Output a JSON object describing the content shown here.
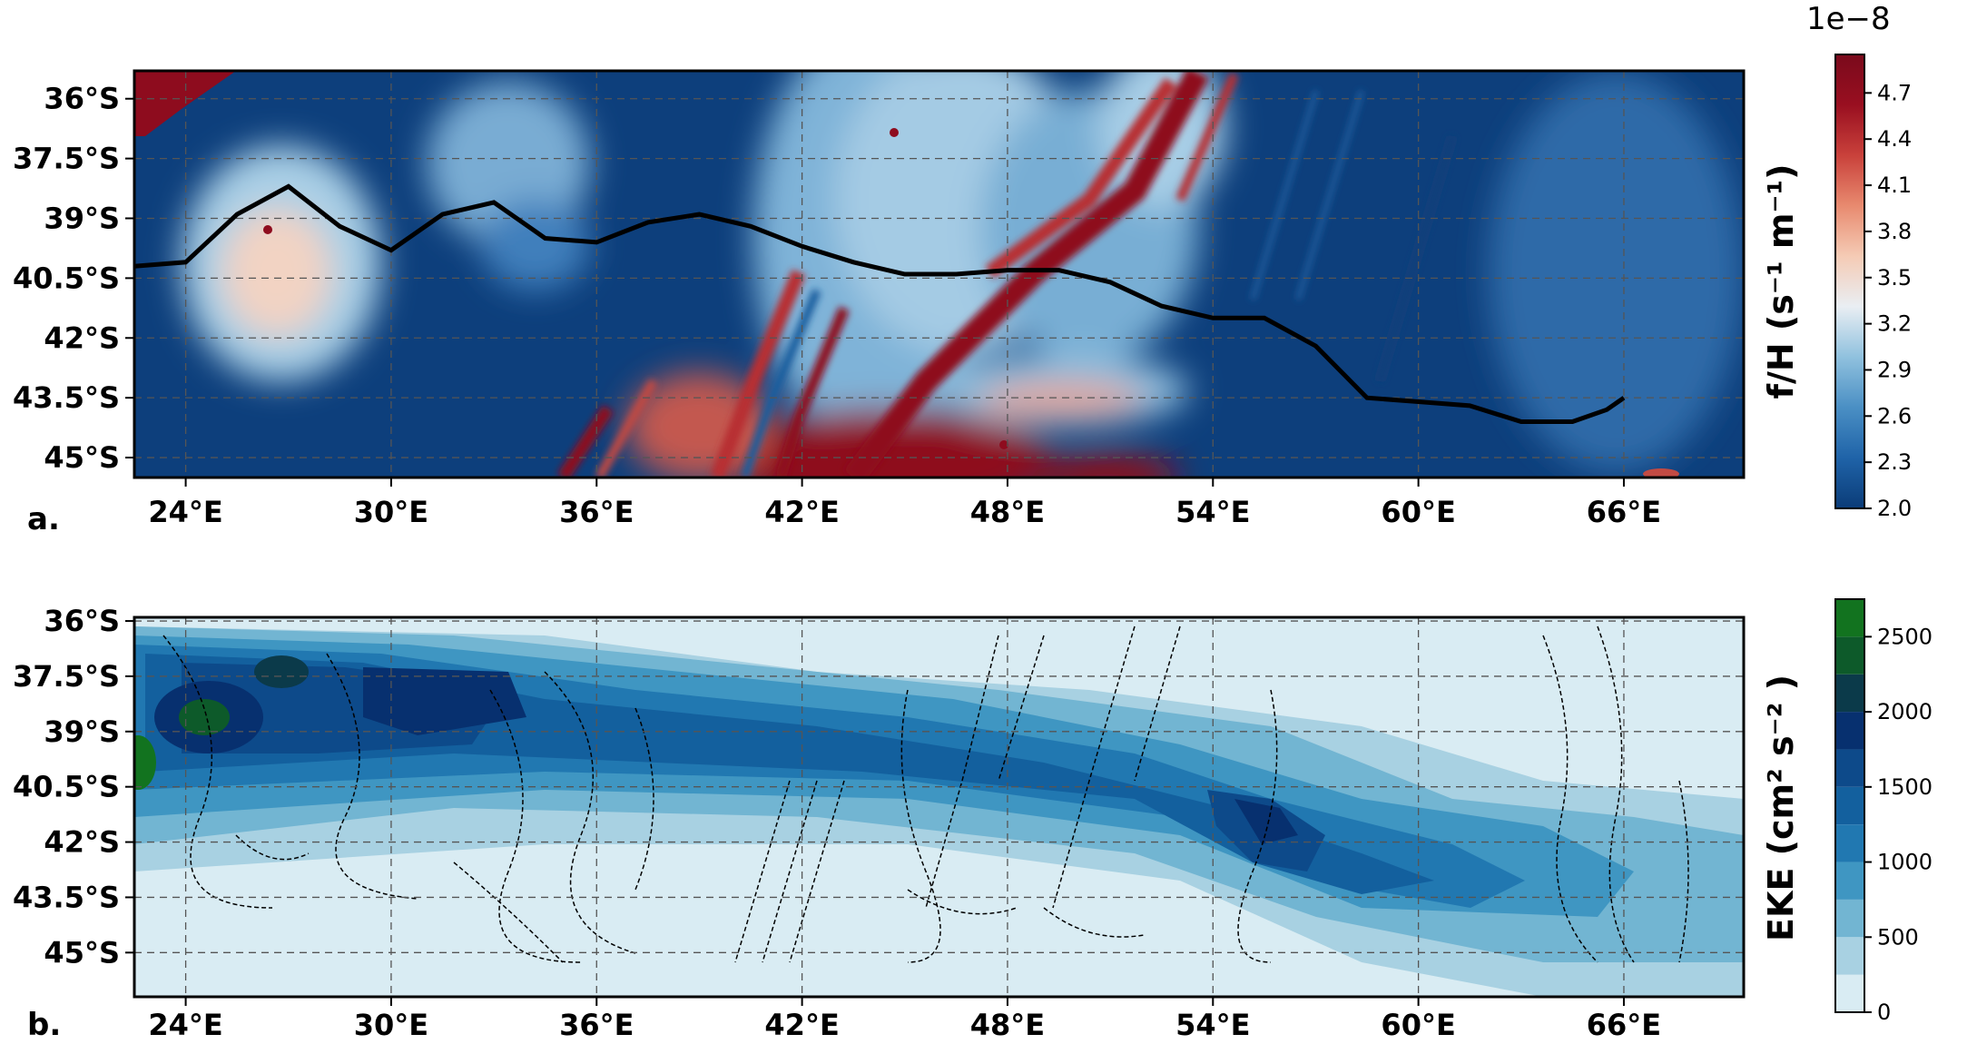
{
  "chart_data": [
    {
      "type": "heatmap",
      "panel_label": "a.",
      "x_ticks": [
        "24°E",
        "30°E",
        "36°E",
        "42°E",
        "48°E",
        "54°E",
        "60°E",
        "66°E"
      ],
      "x_tick_values": [
        24,
        30,
        36,
        42,
        48,
        54,
        60,
        66
      ],
      "y_ticks": [
        "36°S",
        "37.5°S",
        "39°S",
        "40.5°S",
        "42°S",
        "43.5°S",
        "45°S"
      ],
      "y_tick_values": [
        36,
        37.5,
        39,
        40.5,
        42,
        43.5,
        45
      ],
      "xlim": [
        22.5,
        69.5
      ],
      "ylim": [
        45.5,
        35.3
      ],
      "grid": true,
      "colorbar": {
        "label": "f/H (s⁻¹ m⁻¹)",
        "offset": "1e−8",
        "ticks": [
          "2.0",
          "2.3",
          "2.6",
          "2.9",
          "3.2",
          "3.5",
          "3.8",
          "4.1",
          "4.4",
          "4.7"
        ],
        "tick_values": [
          2.0,
          2.3,
          2.6,
          2.9,
          3.2,
          3.5,
          3.8,
          4.1,
          4.4,
          4.7
        ],
        "range": [
          2.0,
          4.95
        ],
        "colormap": [
          "#0b3c78",
          "#1f63a8",
          "#4a8fc4",
          "#90c1de",
          "#e9eef3",
          "#f5cbb5",
          "#e88a6f",
          "#c9413b",
          "#990f20",
          "#7a0a1c"
        ]
      },
      "line": {
        "name": "",
        "color": "#000000",
        "lon": [
          22.5,
          24,
          25.5,
          27,
          28.5,
          30,
          31.5,
          33,
          34.5,
          36,
          37.5,
          39,
          40.5,
          42,
          43.5,
          45,
          46.5,
          48,
          49.5,
          51,
          52.5,
          54,
          55.5,
          57,
          58.5,
          60,
          61.5,
          63,
          64.5,
          65.5,
          66
        ],
        "lat": [
          40.2,
          40.1,
          38.9,
          38.2,
          39.2,
          39.8,
          38.9,
          38.6,
          39.5,
          39.6,
          39.1,
          38.9,
          39.2,
          39.7,
          40.1,
          40.4,
          40.4,
          40.3,
          40.3,
          40.6,
          41.2,
          41.5,
          41.5,
          42.2,
          43.5,
          43.6,
          43.7,
          44.1,
          44.1,
          43.8,
          43.5
        ]
      }
    },
    {
      "type": "heatmap",
      "panel_label": "b.",
      "x_ticks": [
        "24°E",
        "30°E",
        "36°E",
        "42°E",
        "48°E",
        "54°E",
        "60°E",
        "66°E"
      ],
      "x_tick_values": [
        24,
        30,
        36,
        42,
        48,
        54,
        60,
        66
      ],
      "y_ticks": [
        "36°S",
        "37.5°S",
        "39°S",
        "40.5°S",
        "42°S",
        "43.5°S",
        "45°S"
      ],
      "y_tick_values": [
        36,
        37.5,
        39,
        40.5,
        42,
        43.5,
        45
      ],
      "xlim": [
        22.5,
        69.5
      ],
      "ylim": [
        46.2,
        35.9
      ],
      "grid": true,
      "colorbar": {
        "label": "EKE  (cm² s⁻² )",
        "ticks": [
          "0",
          "500",
          "1000",
          "1500",
          "2000",
          "2500"
        ],
        "tick_values": [
          0,
          500,
          1000,
          1500,
          2000,
          2500
        ],
        "range": [
          0,
          2750
        ],
        "levels": [
          0,
          250,
          500,
          750,
          1000,
          1250,
          1500,
          1750,
          2000,
          2250,
          2500,
          2750
        ],
        "colors": [
          "#d9ecf3",
          "#a8d1e2",
          "#72b5d2",
          "#3f96c2",
          "#2178b1",
          "#13609e",
          "#0d4a8a",
          "#07306f",
          "#0b3a4a",
          "#0d5a2a",
          "#12731f"
        ]
      },
      "contours": "dashed f/H contours (black)"
    }
  ]
}
